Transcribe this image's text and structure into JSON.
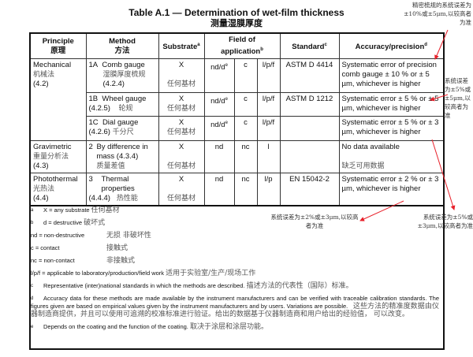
{
  "title": "Table A.1 — Determination of wet-film thickness",
  "title_zh": "测量湿膜厚度",
  "headers": {
    "principle": "Principle",
    "principle_zh": "原理",
    "method": "Method",
    "method_zh": "方法",
    "substrate": "Substrate",
    "substrate_sup": "a",
    "field": "Field of application",
    "field_sup": "b",
    "standard": "Standard",
    "standard_sup": "c",
    "accuracy": "Accuracy/precision",
    "accuracy_sup": "d"
  },
  "rows": [
    {
      "principle": "Mechanical",
      "principle_zh": "机械法",
      "principle_ref": "(4.2)",
      "num": "1A",
      "method": "Comb gauge",
      "method_zh": "湿膜厚度梳规",
      "method_ref": "(4.2.4)",
      "substrate": "X",
      "substrate_zh": "任何基材",
      "d": "nd/d",
      "d_sup": "e",
      "c": "c",
      "lpf": "l/p/f",
      "standard": "ASTM D 4414",
      "accuracy": "Systematic error of precision comb gauge ± 10 % or ± 5 µm, whichever is higher"
    },
    {
      "num": "1B",
      "method": "Wheel gauge",
      "method_ref": "(4.2.5)",
      "method_zh": "轮规",
      "substrate": "X",
      "substrate_zh": "任何基材",
      "d": "nd/d",
      "d_sup": "e",
      "c": "c",
      "lpf": "l/p/f",
      "standard": "ASTM D 1212",
      "accuracy": "Systematic error ± 5 % or ± 5 µm, whichever is higher"
    },
    {
      "num": "1C",
      "method": "Dial gauge",
      "method_ref": "(4.2.6)",
      "method_zh": "千分尺",
      "substrate": "X",
      "substrate_zh": "任何基材",
      "d": "nd/d",
      "d_sup": "e",
      "c": "c",
      "lpf": "l/p/f",
      "standard": "",
      "accuracy": "Systematic error ± 5 % or ± 3 µm, whichever is higher"
    },
    {
      "principle": "Gravimetric",
      "principle_zh": "重量分析法",
      "principle_ref": "(4.3)",
      "num": "2",
      "method": "By difference in mass (4.3.4)",
      "method_zh": "质量差值",
      "substrate": "X",
      "substrate_zh": "任何基材",
      "d": "nd",
      "c": "nc",
      "lpf": "l",
      "standard": "",
      "accuracy": "No data available",
      "accuracy_zh": "缺乏可用数据"
    },
    {
      "principle": "Photothermal",
      "principle_zh": "光热法",
      "principle_ref": "(4.4)",
      "num": "3",
      "method": "Thermal properties",
      "method_ref": "(4.4.4)",
      "method_zh": "热性能",
      "substrate": "X",
      "substrate_zh": "任何基材",
      "d": "nd",
      "c": "nc",
      "lpf": "l/p",
      "standard": "EN 15042-2",
      "accuracy": "Systematic error ± 2 % or ± 3 µm, whichever is higher"
    }
  ],
  "footnotes": {
    "a": {
      "mark": "a",
      "text": "X = any substrate",
      "zh": "任何基材"
    },
    "b": {
      "mark": "b",
      "text": "d = destructive",
      "zh": "破坏式"
    },
    "nd": {
      "text": "nd = non-destructive",
      "zh": "无损 非破坏性"
    },
    "c_def": {
      "text": "c = contact",
      "zh": "接触式"
    },
    "nc": {
      "text": "nc = non-contact",
      "zh": "非接触式"
    },
    "lpf": {
      "text": "l/p/f = applicable to laboratory/production/field work",
      "zh": "适用于实验室/生产/现场工作"
    },
    "c": {
      "mark": "c",
      "text": "Representative (inter)national standards in which the methods are described.",
      "zh": "描述方法的代表性（国际）标准。"
    },
    "d": {
      "mark": "d",
      "text": "Accuracy data for these methods are made available by the instrument manufacturers and can be verified with traceable calibration standards. The figures given are based on empirical values given by the instrument manufacturers and by users. Variations are possible.",
      "zh": "这些方法的精准度数据由仪器制造商提供，并且可以使用可追溯的校准标准进行验证。给出的数据基于仪器制造商和用户给出的经验值， 可以改变。"
    },
    "e": {
      "mark": "e",
      "text": "Depends on the coating and the function of the coating.",
      "zh": "取决于涂层和涂层功能。"
    }
  },
  "annotations": {
    "top_right": "精密梳规的系统误差为±10%或±5μm,以较高者为准",
    "right": "系统误差为±5%或±5μm,以较高者为准",
    "bottom_mid": "系统误差为±2%或±3μm,以较高者为准",
    "bottom_right": "系统误差为±5%或±3μm,以较高者为准"
  },
  "colors": {
    "annotation_arrow": "#e8202a"
  }
}
